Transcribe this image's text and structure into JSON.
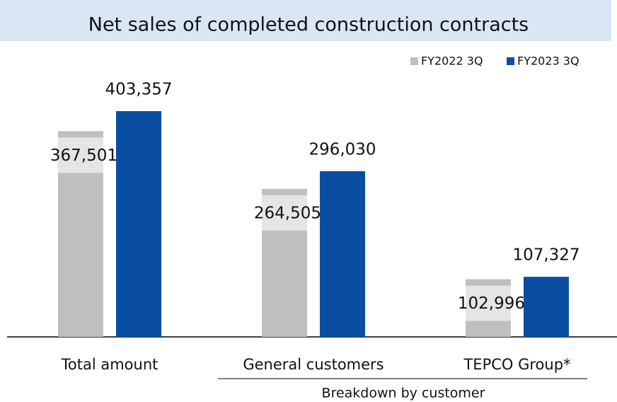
{
  "chart_data": {
    "type": "bar",
    "title": "Net sales of completed construction contracts",
    "categories": [
      "Total amount",
      "General customers",
      "TEPCO Group*"
    ],
    "group_label": "Breakdown by customer",
    "legend": "top-right",
    "series": [
      {
        "name": "FY2022 3Q",
        "color": "#bfbfbf",
        "values": [
          367501,
          264505,
          102996
        ],
        "value_labels": [
          "367,501",
          "264,505",
          "102,996"
        ]
      },
      {
        "name": "FY2023 3Q",
        "color": "#0a4ea2",
        "values": [
          403357,
          296030,
          107327
        ],
        "value_labels": [
          "403,357",
          "296,030",
          "107,327"
        ]
      }
    ]
  }
}
